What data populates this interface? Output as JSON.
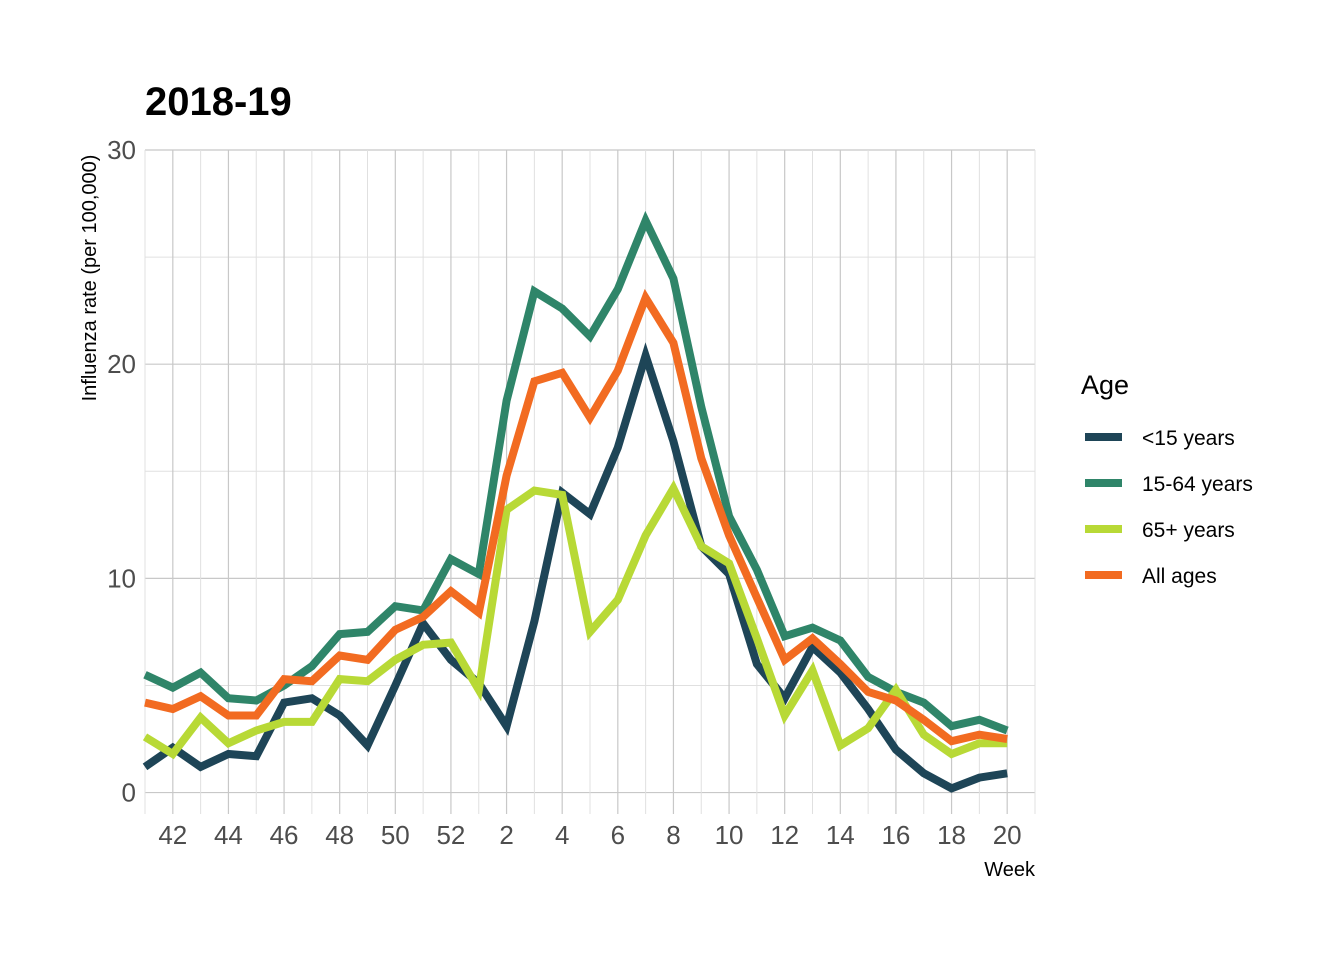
{
  "chart_data": {
    "type": "line",
    "title": "2018-19",
    "xlabel": "Week",
    "ylabel": "Influenza rate (per 100,000)",
    "ylim": [
      -1,
      30
    ],
    "yticks": [
      0,
      10,
      20,
      30
    ],
    "x": [
      41,
      42,
      43,
      44,
      45,
      46,
      47,
      48,
      49,
      50,
      51,
      52,
      53,
      54,
      55,
      56,
      57,
      58,
      59,
      60,
      61,
      62,
      63,
      64,
      65,
      66,
      67,
      68,
      69,
      70,
      71,
      72
    ],
    "x_tick_labels": [
      "42",
      "44",
      "46",
      "48",
      "50",
      "52",
      "2",
      "4",
      "6",
      "8",
      "10",
      "12",
      "14",
      "16",
      "18",
      "20"
    ],
    "x_tick_positions": [
      42,
      44,
      46,
      48,
      50,
      52,
      54,
      56,
      58,
      60,
      62,
      64,
      66,
      68,
      70,
      72
    ],
    "grid": true,
    "legend": {
      "title": "Age",
      "placement": "right"
    },
    "series": [
      {
        "name": "<15 years",
        "color": "#1e4557",
        "values": [
          1.2,
          2.1,
          1.2,
          1.8,
          1.7,
          4.2,
          4.4,
          3.6,
          2.2,
          5.0,
          7.9,
          6.2,
          5.1,
          3.1,
          8.0,
          14.0,
          13.0,
          16.1,
          20.4,
          16.4,
          11.5,
          10.2,
          6.0,
          4.4,
          6.8,
          5.6,
          3.9,
          2.0,
          0.9,
          0.2,
          0.7,
          0.9
        ]
      },
      {
        "name": "15-64 years",
        "color": "#2f8569",
        "values": [
          5.5,
          4.9,
          5.6,
          4.4,
          4.3,
          5.0,
          5.9,
          7.4,
          7.5,
          8.7,
          8.5,
          10.9,
          10.2,
          18.3,
          23.4,
          22.6,
          21.3,
          23.5,
          26.7,
          24.0,
          18.0,
          12.9,
          10.4,
          7.3,
          7.7,
          7.1,
          5.4,
          4.7,
          4.2,
          3.1,
          3.4,
          2.9
        ]
      },
      {
        "name": "65+ years",
        "color": "#b8d936",
        "values": [
          2.6,
          1.8,
          3.5,
          2.3,
          2.9,
          3.3,
          3.3,
          5.3,
          5.2,
          6.2,
          6.9,
          7.0,
          4.8,
          13.2,
          14.1,
          13.9,
          7.5,
          9.0,
          12.0,
          14.2,
          11.5,
          10.7,
          7.2,
          3.6,
          5.7,
          2.2,
          3.0,
          4.8,
          2.7,
          1.8,
          2.3,
          2.3
        ]
      },
      {
        "name": "All ages",
        "color": "#f26b21",
        "values": [
          4.2,
          3.9,
          4.5,
          3.6,
          3.6,
          5.3,
          5.2,
          6.4,
          6.2,
          7.6,
          8.2,
          9.4,
          8.4,
          14.8,
          19.2,
          19.6,
          17.5,
          19.7,
          23.1,
          21.0,
          15.6,
          12.0,
          9.1,
          6.2,
          7.2,
          6.0,
          4.7,
          4.3,
          3.4,
          2.4,
          2.7,
          2.5
        ]
      }
    ]
  }
}
